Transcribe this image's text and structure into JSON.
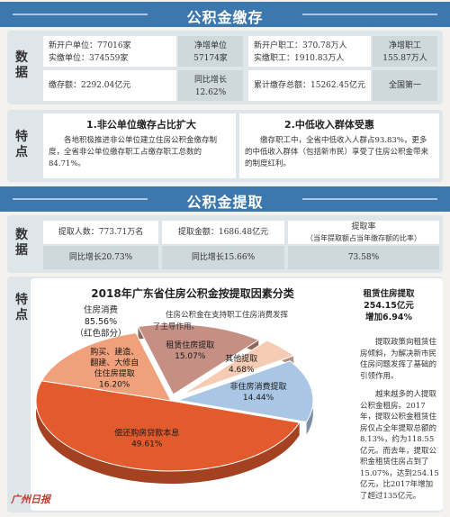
{
  "header1": "公积金缴存",
  "header2": "公积金提取",
  "tag_data": "数据",
  "tag_feature": "特点",
  "deposit": {
    "new_units": "新开户单位：77016家",
    "paying_units": "实缴单位：374559家",
    "net_units_label": "净增单位",
    "net_units_value": "57174家",
    "new_workers": "新开户职工：370.78万人",
    "paying_workers": "实缴职工：1910.83万人",
    "net_workers_label": "净增职工",
    "net_workers_value": "155.87万人",
    "amount": "缴存额：2292.04亿元",
    "yoy_label": "同比增长",
    "yoy_value": "12.62%",
    "total": "累计缴存总额：15262.45亿元",
    "rank": "全国第一"
  },
  "features1": {
    "f1_title": "1.非公单位缴存占比扩大",
    "f1_text": "各地积极推进非公单位建立住房公积金缴存制度，全省非公单位缴存职工占缴存职工总数的84.71%。",
    "f2_title": "2.中低收入群体受惠",
    "f2_text": "缴存职工中，全省中低收入人群占93.83%，更多的中低收入群体（包括新市民）享受了住房公积金带来的制度红利。"
  },
  "withdraw": {
    "people": "提取人数：773.71万名",
    "people_yoy": "同比增长20.73%",
    "amount": "提取金额：1686.48亿元",
    "amount_yoy": "同比增长15.66%",
    "rate_label": "提取率",
    "rate_note": "（当年提取额占当年缴存额的比率）",
    "rate_value": "73.58%"
  },
  "side": {
    "rent_title": "租赁住房提取",
    "rent_amount": "254.15亿元",
    "rent_growth": "增加6.94%",
    "p1": "提取政策向租赁住房倾斜，为解决新市民住房问题发挥了基础的引领作用。",
    "p2": "越来越多的人提取公积金租房。2017年，提取公积金租赁住房仅占全年提取总额的8.13%，约为118.55亿元。而去年，提取公积金租赁住房占到了15.07%，达到254.15亿元，比2017年增加了超过135亿元。"
  },
  "chart_note": "住房公积金在支持职工住房消费发挥了主导作用。",
  "consume_label": "住房消费",
  "consume_value": "85.56%",
  "consume_note": "（红色部分）",
  "logo": "广州日报",
  "chart_data": {
    "type": "pie",
    "title": "2018年广东省住房公积金按提取因素分类",
    "categories": [
      "偿还购房贷款本息",
      "购买、建造、翻建、大修自住住房提取",
      "租赁住房提取",
      "其他提取",
      "非住房消费提取"
    ],
    "values": [
      49.61,
      16.2,
      15.07,
      4.68,
      14.44
    ],
    "labels": [
      "49.61%",
      "16.20%",
      "15.07%",
      "4.68%",
      "14.44%"
    ],
    "colors": [
      "#e35a2c",
      "#f0a07a",
      "#c58f84",
      "#f6cbb3",
      "#a9c6e4"
    ]
  }
}
